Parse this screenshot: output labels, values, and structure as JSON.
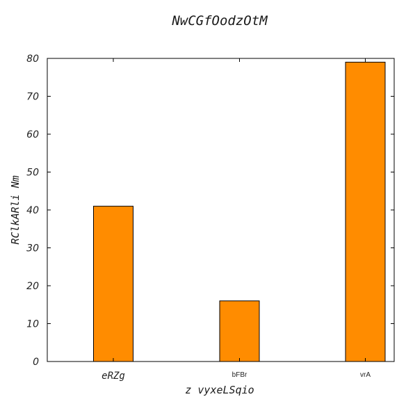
{
  "chart_data": {
    "type": "bar",
    "title": "NwCGfOodzOtM",
    "xlabel": "z vyxeLSqio",
    "ylabel": "RClkARli Nm",
    "categories": [
      "eRZg",
      "bFBr",
      "vrA"
    ],
    "values": [
      41,
      16,
      79
    ],
    "ylim": [
      0,
      80
    ],
    "yticks": [
      0,
      10,
      20,
      30,
      40,
      50,
      60,
      70,
      80
    ],
    "bar_color": "#ff8c00",
    "edge_color": "#000000",
    "grid": false,
    "legend": "none"
  }
}
